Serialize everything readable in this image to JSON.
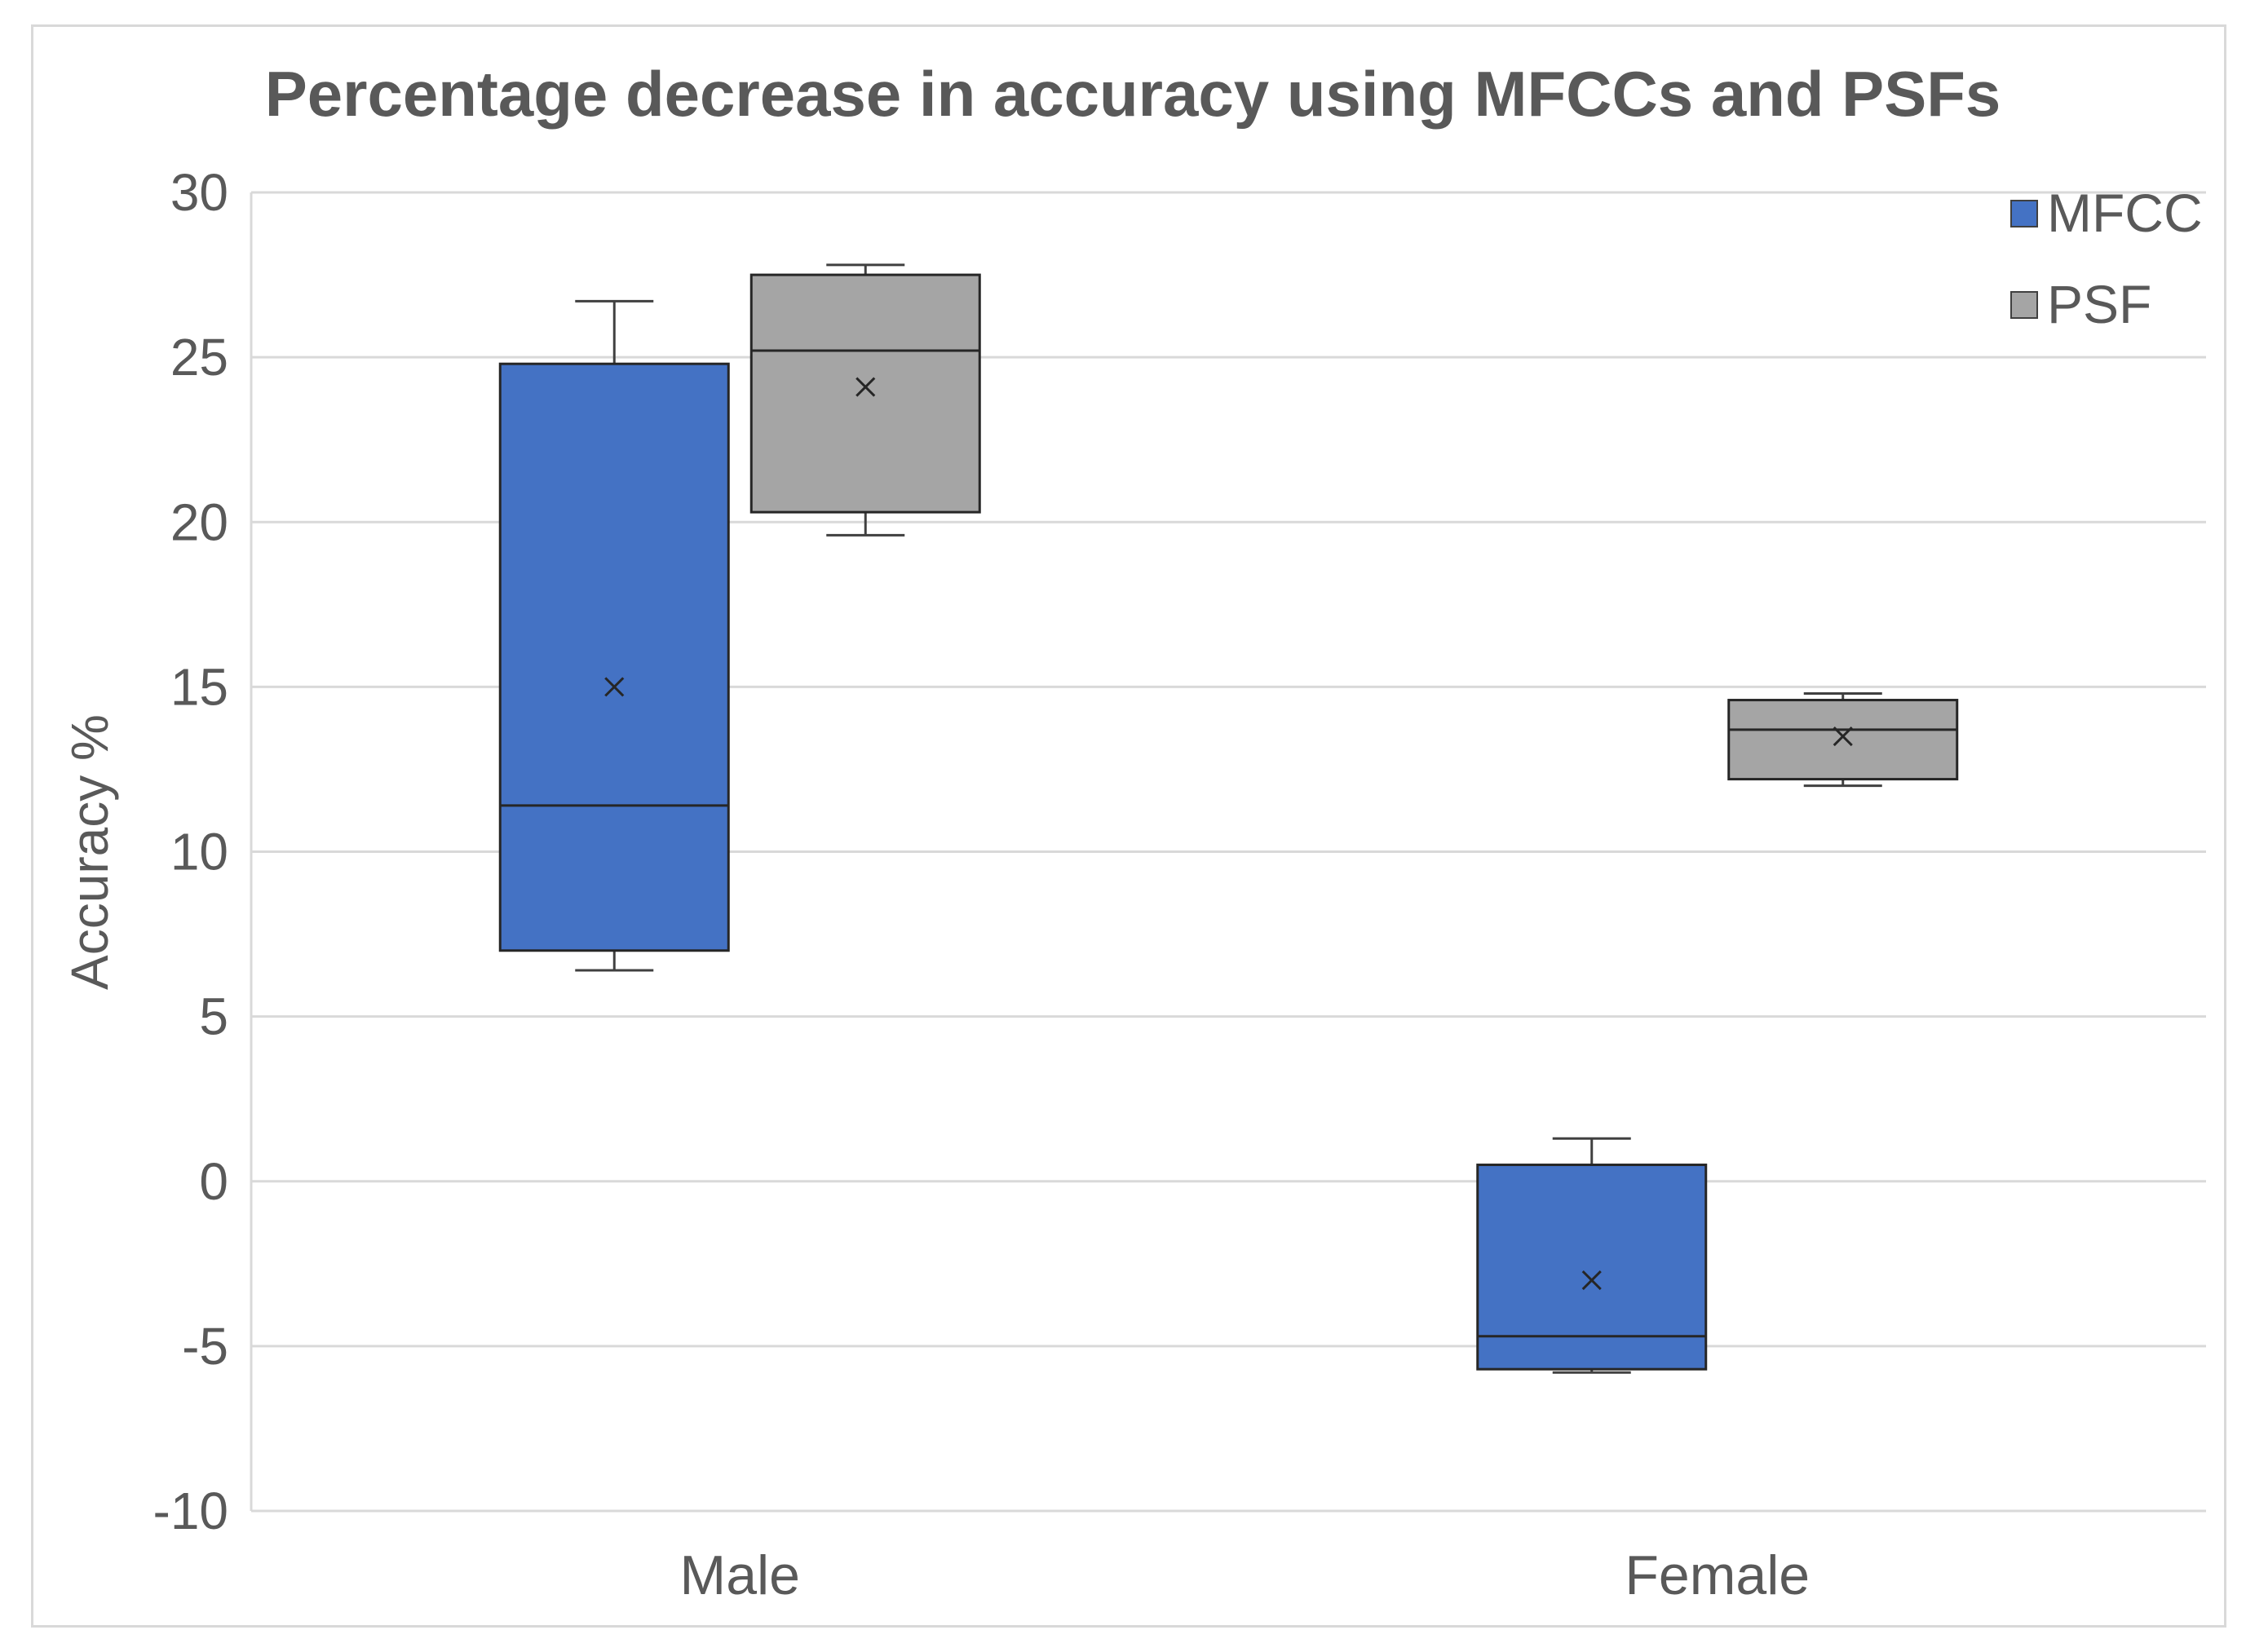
{
  "chart_data": {
    "type": "boxplot",
    "title": "Percentage decrease in accuracy using MFCCs and PSFs",
    "xlabel": "",
    "ylabel": "Accuracy %",
    "ylim": [
      -10,
      30
    ],
    "yticks": [
      30,
      25,
      20,
      15,
      10,
      5,
      0,
      -5,
      -10
    ],
    "ytick_labels": [
      "30",
      "25",
      "20",
      "15",
      "10",
      "5",
      "0",
      "-5",
      "-10"
    ],
    "grid": true,
    "legend_position": "top-right",
    "categories": [
      "Male",
      "Female"
    ],
    "series": [
      {
        "name": "MFCC",
        "color": "#4472c4",
        "boxes": [
          {
            "category": "Male",
            "min": 6.4,
            "q1": 7.0,
            "median": 11.4,
            "q3": 24.8,
            "max": 26.7,
            "mean": 15.0
          },
          {
            "category": "Female",
            "min": -5.8,
            "q1": -5.7,
            "median": -4.7,
            "q3": 0.5,
            "max": 1.3,
            "mean": -3.0
          }
        ]
      },
      {
        "name": "PSF",
        "color": "#a5a5a5",
        "boxes": [
          {
            "category": "Male",
            "min": 19.6,
            "q1": 20.3,
            "median": 25.2,
            "q3": 27.5,
            "max": 27.8,
            "mean": 24.1
          },
          {
            "category": "Female",
            "min": 12.0,
            "q1": 12.2,
            "median": 13.7,
            "q3": 14.6,
            "max": 14.8,
            "mean": 13.5
          }
        ]
      }
    ]
  }
}
